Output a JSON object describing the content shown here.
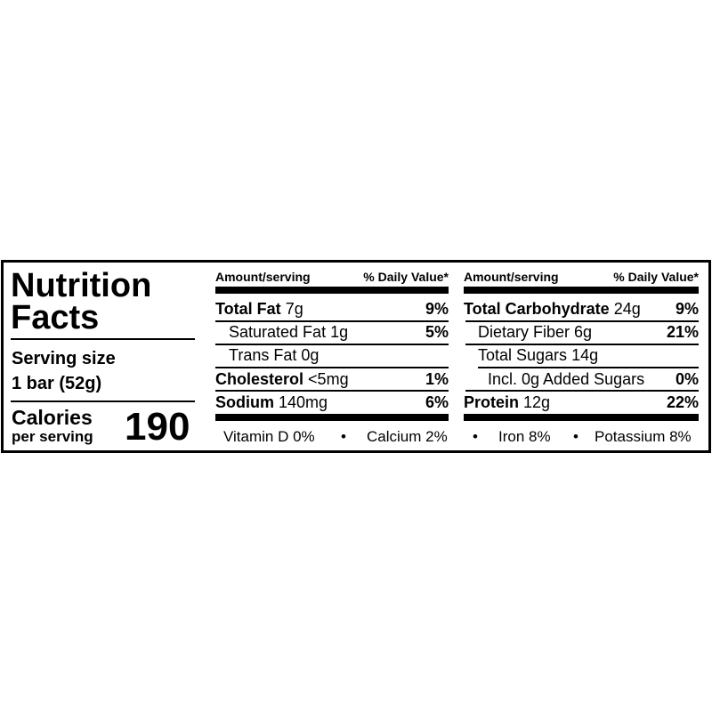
{
  "title": "Nutrition Facts",
  "title_line1": "Nutrition",
  "title_line2": "Facts",
  "serving": {
    "label": "Serving size",
    "value": "1 bar (52g)"
  },
  "calories": {
    "label": "Calories",
    "sublabel": "per serving",
    "value": "190"
  },
  "header": {
    "amount": "Amount/serving",
    "dv": "% Daily Value*"
  },
  "left_rows": [
    {
      "name": "Total Fat",
      "amount": "7g",
      "dv": "9%"
    },
    {
      "name": "Saturated Fat",
      "amount": "1g",
      "dv": "5%"
    },
    {
      "name": "Trans Fat",
      "amount": "0g",
      "dv": ""
    },
    {
      "name": "Cholesterol",
      "amount": "<5mg",
      "dv": "1%"
    },
    {
      "name": "Sodium",
      "amount": "140mg",
      "dv": "6%"
    }
  ],
  "right_rows": [
    {
      "name": "Total Carbohydrate",
      "amount": "24g",
      "dv": "9%"
    },
    {
      "name": "Dietary Fiber",
      "amount": "6g",
      "dv": "21%"
    },
    {
      "name": "Total Sugars",
      "amount": "14g",
      "dv": ""
    },
    {
      "name": "Incl. 0g Added Sugars",
      "amount": "",
      "dv": "0%"
    },
    {
      "name": "Protein",
      "amount": "12g",
      "dv": "22%"
    }
  ],
  "micronutrients": [
    "Vitamin D 0%",
    "Calcium 2%",
    "Iron 8%",
    "Potassium 8%"
  ],
  "separator": "•"
}
